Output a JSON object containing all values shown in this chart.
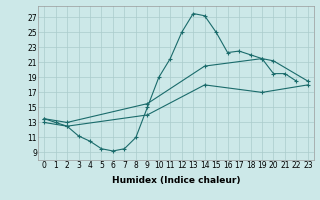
{
  "xlabel": "Humidex (Indice chaleur)",
  "bg_color": "#cce8e8",
  "grid_color": "#aacccc",
  "line_color": "#1a6b6b",
  "xlim": [
    -0.5,
    23.5
  ],
  "ylim": [
    8.0,
    28.5
  ],
  "xticks": [
    0,
    1,
    2,
    3,
    4,
    5,
    6,
    7,
    8,
    9,
    10,
    11,
    12,
    13,
    14,
    15,
    16,
    17,
    18,
    19,
    20,
    21,
    22,
    23
  ],
  "yticks": [
    9,
    11,
    13,
    15,
    17,
    19,
    21,
    23,
    25,
    27
  ],
  "curve1_x": [
    0,
    1,
    2,
    3,
    4,
    5,
    6,
    7,
    8,
    9,
    10,
    11,
    12,
    13,
    14,
    15,
    16,
    17,
    18,
    19,
    20,
    21,
    22
  ],
  "curve1_y": [
    13.5,
    13.0,
    12.5,
    11.2,
    10.5,
    9.5,
    9.2,
    9.5,
    11.0,
    15.0,
    19.0,
    21.5,
    25.0,
    27.5,
    27.2,
    25.0,
    22.3,
    22.5,
    22.0,
    21.5,
    19.5,
    19.5,
    18.5
  ],
  "curve2_x": [
    0,
    2,
    9,
    14,
    19,
    20,
    23
  ],
  "curve2_y": [
    13.5,
    13.0,
    15.5,
    20.5,
    21.5,
    21.2,
    18.5
  ],
  "curve3_x": [
    0,
    2,
    9,
    14,
    19,
    23
  ],
  "curve3_y": [
    13.0,
    12.5,
    14.0,
    18.0,
    17.0,
    18.0
  ],
  "tick_fontsize": 5.5,
  "label_fontsize": 6.5,
  "linewidth": 0.8,
  "markersize": 2.5
}
